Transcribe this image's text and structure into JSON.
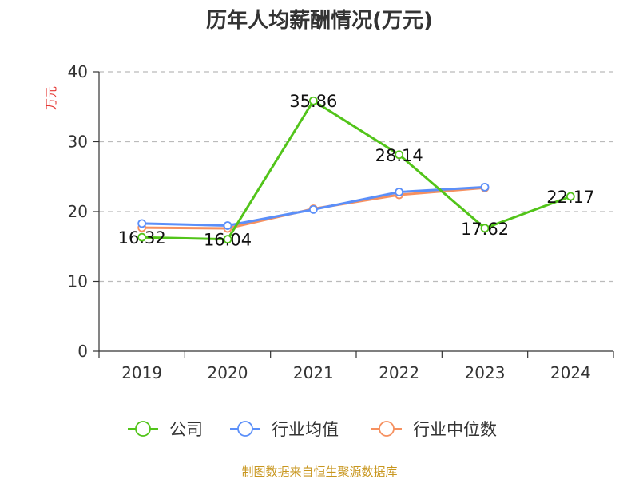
{
  "chart_data": {
    "type": "line",
    "title": "历年人均薪酬情况(万元)",
    "ylabel": "万元",
    "xlabel": "",
    "categories": [
      "2019",
      "2020",
      "2021",
      "2022",
      "2023",
      "2024"
    ],
    "ylim": [
      0,
      40
    ],
    "yticks": [
      0,
      10,
      20,
      30,
      40
    ],
    "grid": true,
    "legend_position": "bottom",
    "series": [
      {
        "name": "公司",
        "color": "#52c41a",
        "values": [
          16.32,
          16.04,
          35.86,
          28.14,
          17.62,
          22.17
        ],
        "show_labels": true
      },
      {
        "name": "行业均值",
        "color": "#5b8ff9",
        "values": [
          18.3,
          18.0,
          20.3,
          22.8,
          23.5,
          null
        ],
        "show_labels": false
      },
      {
        "name": "行业中位数",
        "color": "#f6905f",
        "values": [
          17.7,
          17.6,
          20.4,
          22.4,
          23.4,
          null
        ],
        "show_labels": false
      }
    ]
  },
  "source_text": "制图数据来自恒生聚源数据库"
}
